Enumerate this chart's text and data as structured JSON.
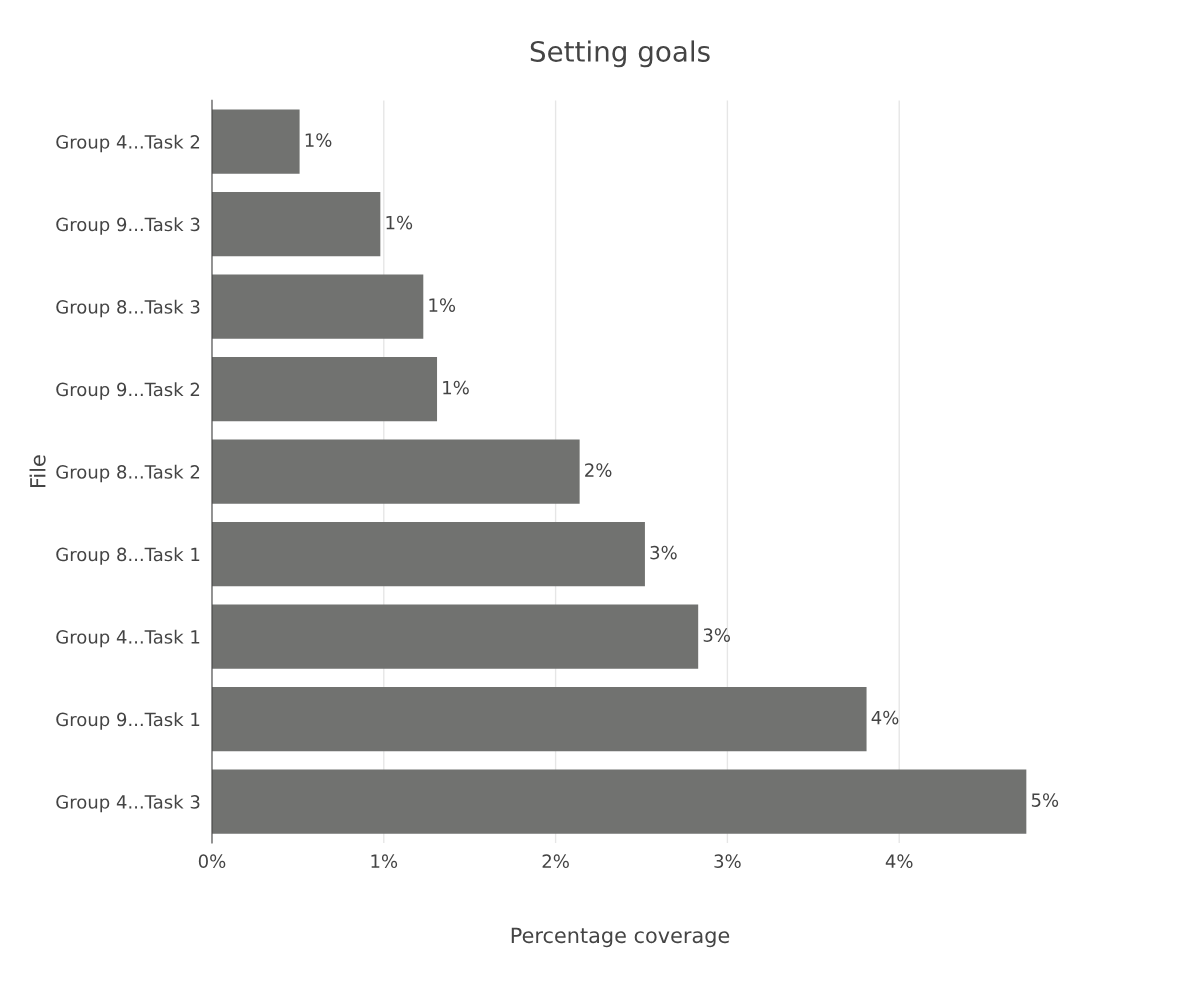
{
  "chart_data": {
    "type": "bar",
    "orientation": "horizontal",
    "title": "Setting goals",
    "xlabel": "Percentage coverage",
    "ylabel": "File",
    "categories": [
      "Group 4...Task 2",
      "Group 9...Task 3",
      "Group 8...Task 3",
      "Group 9...Task 2",
      "Group 8...Task 2",
      "Group 8...Task 1",
      "Group 4...Task 1",
      "Group 9...Task 1",
      "Group 4...Task 3"
    ],
    "values": [
      0.51,
      0.98,
      1.23,
      1.31,
      2.14,
      2.52,
      2.83,
      3.81,
      4.74
    ],
    "value_labels": [
      "1%",
      "1%",
      "1%",
      "1%",
      "2%",
      "3%",
      "3%",
      "4%",
      "5%"
    ],
    "color": "#717270",
    "xlim": [
      0,
      4.75
    ],
    "xticks": [
      {
        "value": 0,
        "label": "0%"
      },
      {
        "value": 1,
        "label": "1%"
      },
      {
        "value": 2,
        "label": "2%"
      },
      {
        "value": 3,
        "label": "3%"
      },
      {
        "value": 4,
        "label": "4%"
      }
    ],
    "grid": "x",
    "legend": false
  }
}
